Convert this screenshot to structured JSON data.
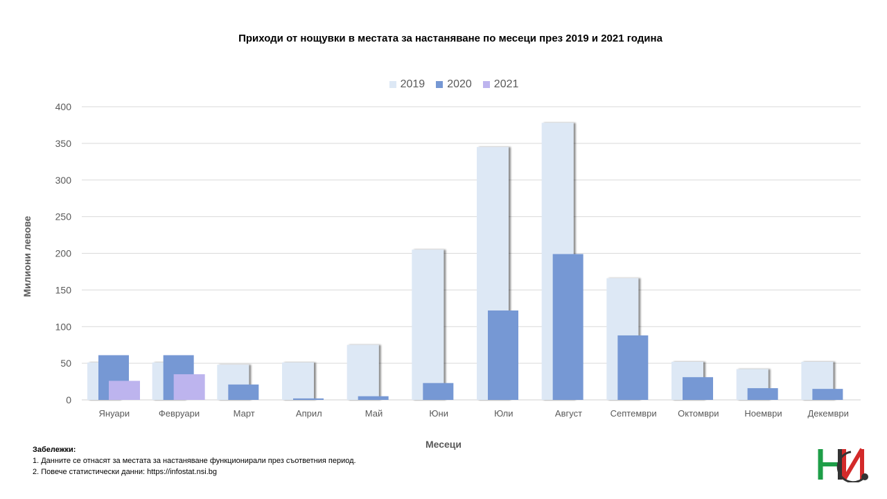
{
  "chart_data": {
    "type": "bar",
    "title": "Приходи от нощувки в местата за настаняване по месеци през 2019 и 2021 година",
    "xlabel": "Месеци",
    "ylabel": "Милиони левове",
    "ylim": [
      0,
      400
    ],
    "yticks": [
      0,
      50,
      100,
      150,
      200,
      250,
      300,
      350,
      400
    ],
    "grid": true,
    "legend_position": "top",
    "categories": [
      "Януари",
      "Февруари",
      "Март",
      "Април",
      "Май",
      "Юни",
      "Юли",
      "Август",
      "Септември",
      "Октомври",
      "Ноември",
      "Декември"
    ],
    "series": [
      {
        "name": "2019",
        "color": "#dde8f5",
        "values": [
          51,
          51,
          48,
          51,
          75,
          205,
          345,
          378,
          166,
          52,
          42,
          52
        ]
      },
      {
        "name": "2020",
        "color": "#7698d4",
        "values": [
          61,
          61,
          21,
          2,
          5,
          23,
          122,
          199,
          88,
          31,
          16,
          15
        ]
      },
      {
        "name": "2021",
        "color": "#bdb4ee",
        "values": [
          26,
          35,
          null,
          null,
          null,
          null,
          null,
          null,
          null,
          null,
          null,
          null
        ]
      }
    ]
  },
  "notes": {
    "heading": "Забележки:",
    "line1": "1. Данните се отнасят за местата за настаняване функционирали през съответния период.",
    "line2": "2. Повече статистически данни: https://infostat.nsi.bg"
  },
  "logo": {
    "icon": "nsi-logo-icon",
    "colors": [
      "#1e9e48",
      "#d32a2a",
      "#333333"
    ]
  }
}
